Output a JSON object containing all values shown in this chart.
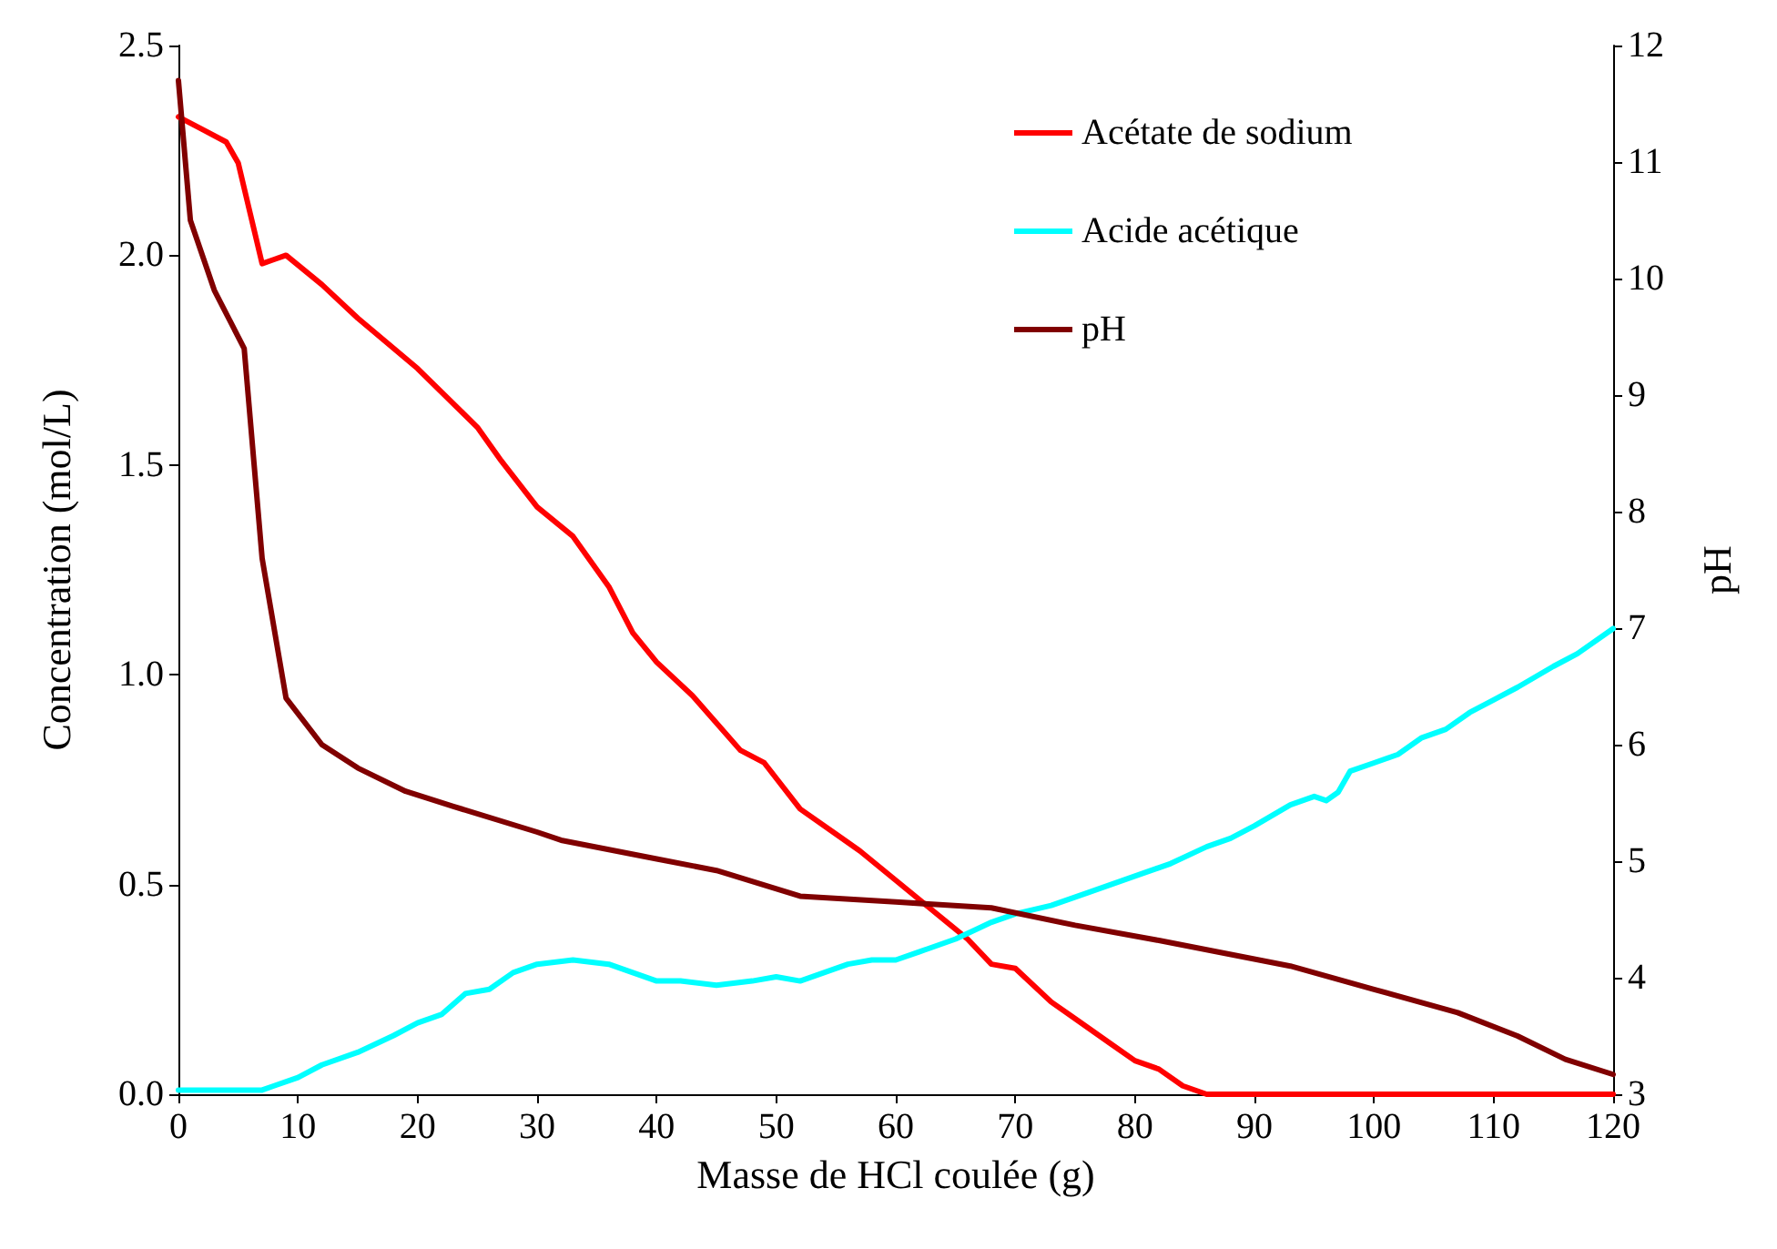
{
  "chart_data": {
    "type": "line",
    "xlabel": "Masse de HCl coulée (g)",
    "ylabel": "Concentration (mol/L)",
    "y2label": "pH",
    "xlim": [
      0,
      120
    ],
    "xticks": [
      0,
      10,
      20,
      30,
      40,
      50,
      60,
      70,
      80,
      90,
      100,
      110,
      120
    ],
    "ylim": [
      0,
      2.5
    ],
    "yticks": [
      {
        "value": 0,
        "label": "0.0"
      },
      {
        "value": 0.5,
        "label": "0.5"
      },
      {
        "value": 1,
        "label": "1.0"
      },
      {
        "value": 1.5,
        "label": "1.5"
      },
      {
        "value": 2,
        "label": "2.0"
      },
      {
        "value": 2.5,
        "label": "2.5"
      }
    ],
    "y2lim": [
      3,
      12
    ],
    "y2ticks": [
      3,
      4,
      5,
      6,
      7,
      8,
      9,
      10,
      11,
      12
    ],
    "grid": false,
    "legend": "top right",
    "marker": "none",
    "line_style": "solid",
    "series": [
      {
        "name": "Acétate de sodium",
        "color": "#ff0000",
        "x": [
          0,
          2,
          4,
          5,
          6,
          7,
          8,
          9,
          12,
          15,
          20,
          25,
          27,
          30,
          33,
          36,
          38,
          40,
          43,
          47,
          49,
          52,
          55,
          57,
          60,
          63,
          66,
          68,
          70,
          73,
          75,
          78,
          80,
          82,
          84,
          86,
          90,
          100,
          110,
          120
        ],
        "values": [
          2.33,
          2.3,
          2.27,
          2.22,
          2.1,
          1.98,
          1.99,
          2.0,
          1.93,
          1.85,
          1.73,
          1.59,
          1.51,
          1.4,
          1.33,
          1.21,
          1.1,
          1.03,
          0.95,
          0.82,
          0.79,
          0.68,
          0.62,
          0.58,
          0.51,
          0.44,
          0.37,
          0.31,
          0.3,
          0.22,
          0.18,
          0.12,
          0.08,
          0.06,
          0.02,
          0,
          0,
          0,
          0,
          0
        ]
      },
      {
        "name": "Acide acétique",
        "color": "#00ffff",
        "x": [
          0,
          7,
          8,
          10,
          12,
          15,
          18,
          20,
          22,
          24,
          26,
          28,
          30,
          33,
          36,
          38,
          40,
          42,
          45,
          48,
          50,
          52,
          54,
          56,
          58,
          60,
          62,
          65,
          68,
          70,
          73,
          76,
          78,
          80,
          83,
          86,
          88,
          90,
          93,
          95,
          96,
          97,
          98,
          100,
          102,
          104,
          106,
          108,
          110,
          112,
          115,
          117,
          120
        ],
        "values": [
          0.01,
          0.01,
          0.02,
          0.04,
          0.07,
          0.1,
          0.14,
          0.17,
          0.19,
          0.24,
          0.25,
          0.29,
          0.31,
          0.32,
          0.31,
          0.29,
          0.27,
          0.27,
          0.26,
          0.27,
          0.28,
          0.27,
          0.29,
          0.31,
          0.32,
          0.32,
          0.34,
          0.37,
          0.41,
          0.43,
          0.45,
          0.48,
          0.5,
          0.52,
          0.55,
          0.59,
          0.61,
          0.64,
          0.69,
          0.71,
          0.7,
          0.72,
          0.77,
          0.79,
          0.81,
          0.85,
          0.87,
          0.91,
          0.94,
          0.97,
          1.02,
          1.05,
          1.11
        ]
      },
      {
        "name": "pH",
        "color": "#800000",
        "axis": "y2",
        "x": [
          0,
          1,
          3,
          5.5,
          7,
          9,
          12,
          15,
          19,
          23,
          30,
          32,
          40,
          45,
          52,
          60,
          68,
          75,
          82,
          93,
          100,
          107,
          112,
          116,
          120
        ],
        "values": [
          11.7,
          10.5,
          9.9,
          9.4,
          7.6,
          6.4,
          6.0,
          5.8,
          5.6,
          5.47,
          5.25,
          5.18,
          5.02,
          4.92,
          4.7,
          4.65,
          4.6,
          4.45,
          4.32,
          4.1,
          3.9,
          3.7,
          3.5,
          3.3,
          3.17
        ]
      }
    ]
  }
}
